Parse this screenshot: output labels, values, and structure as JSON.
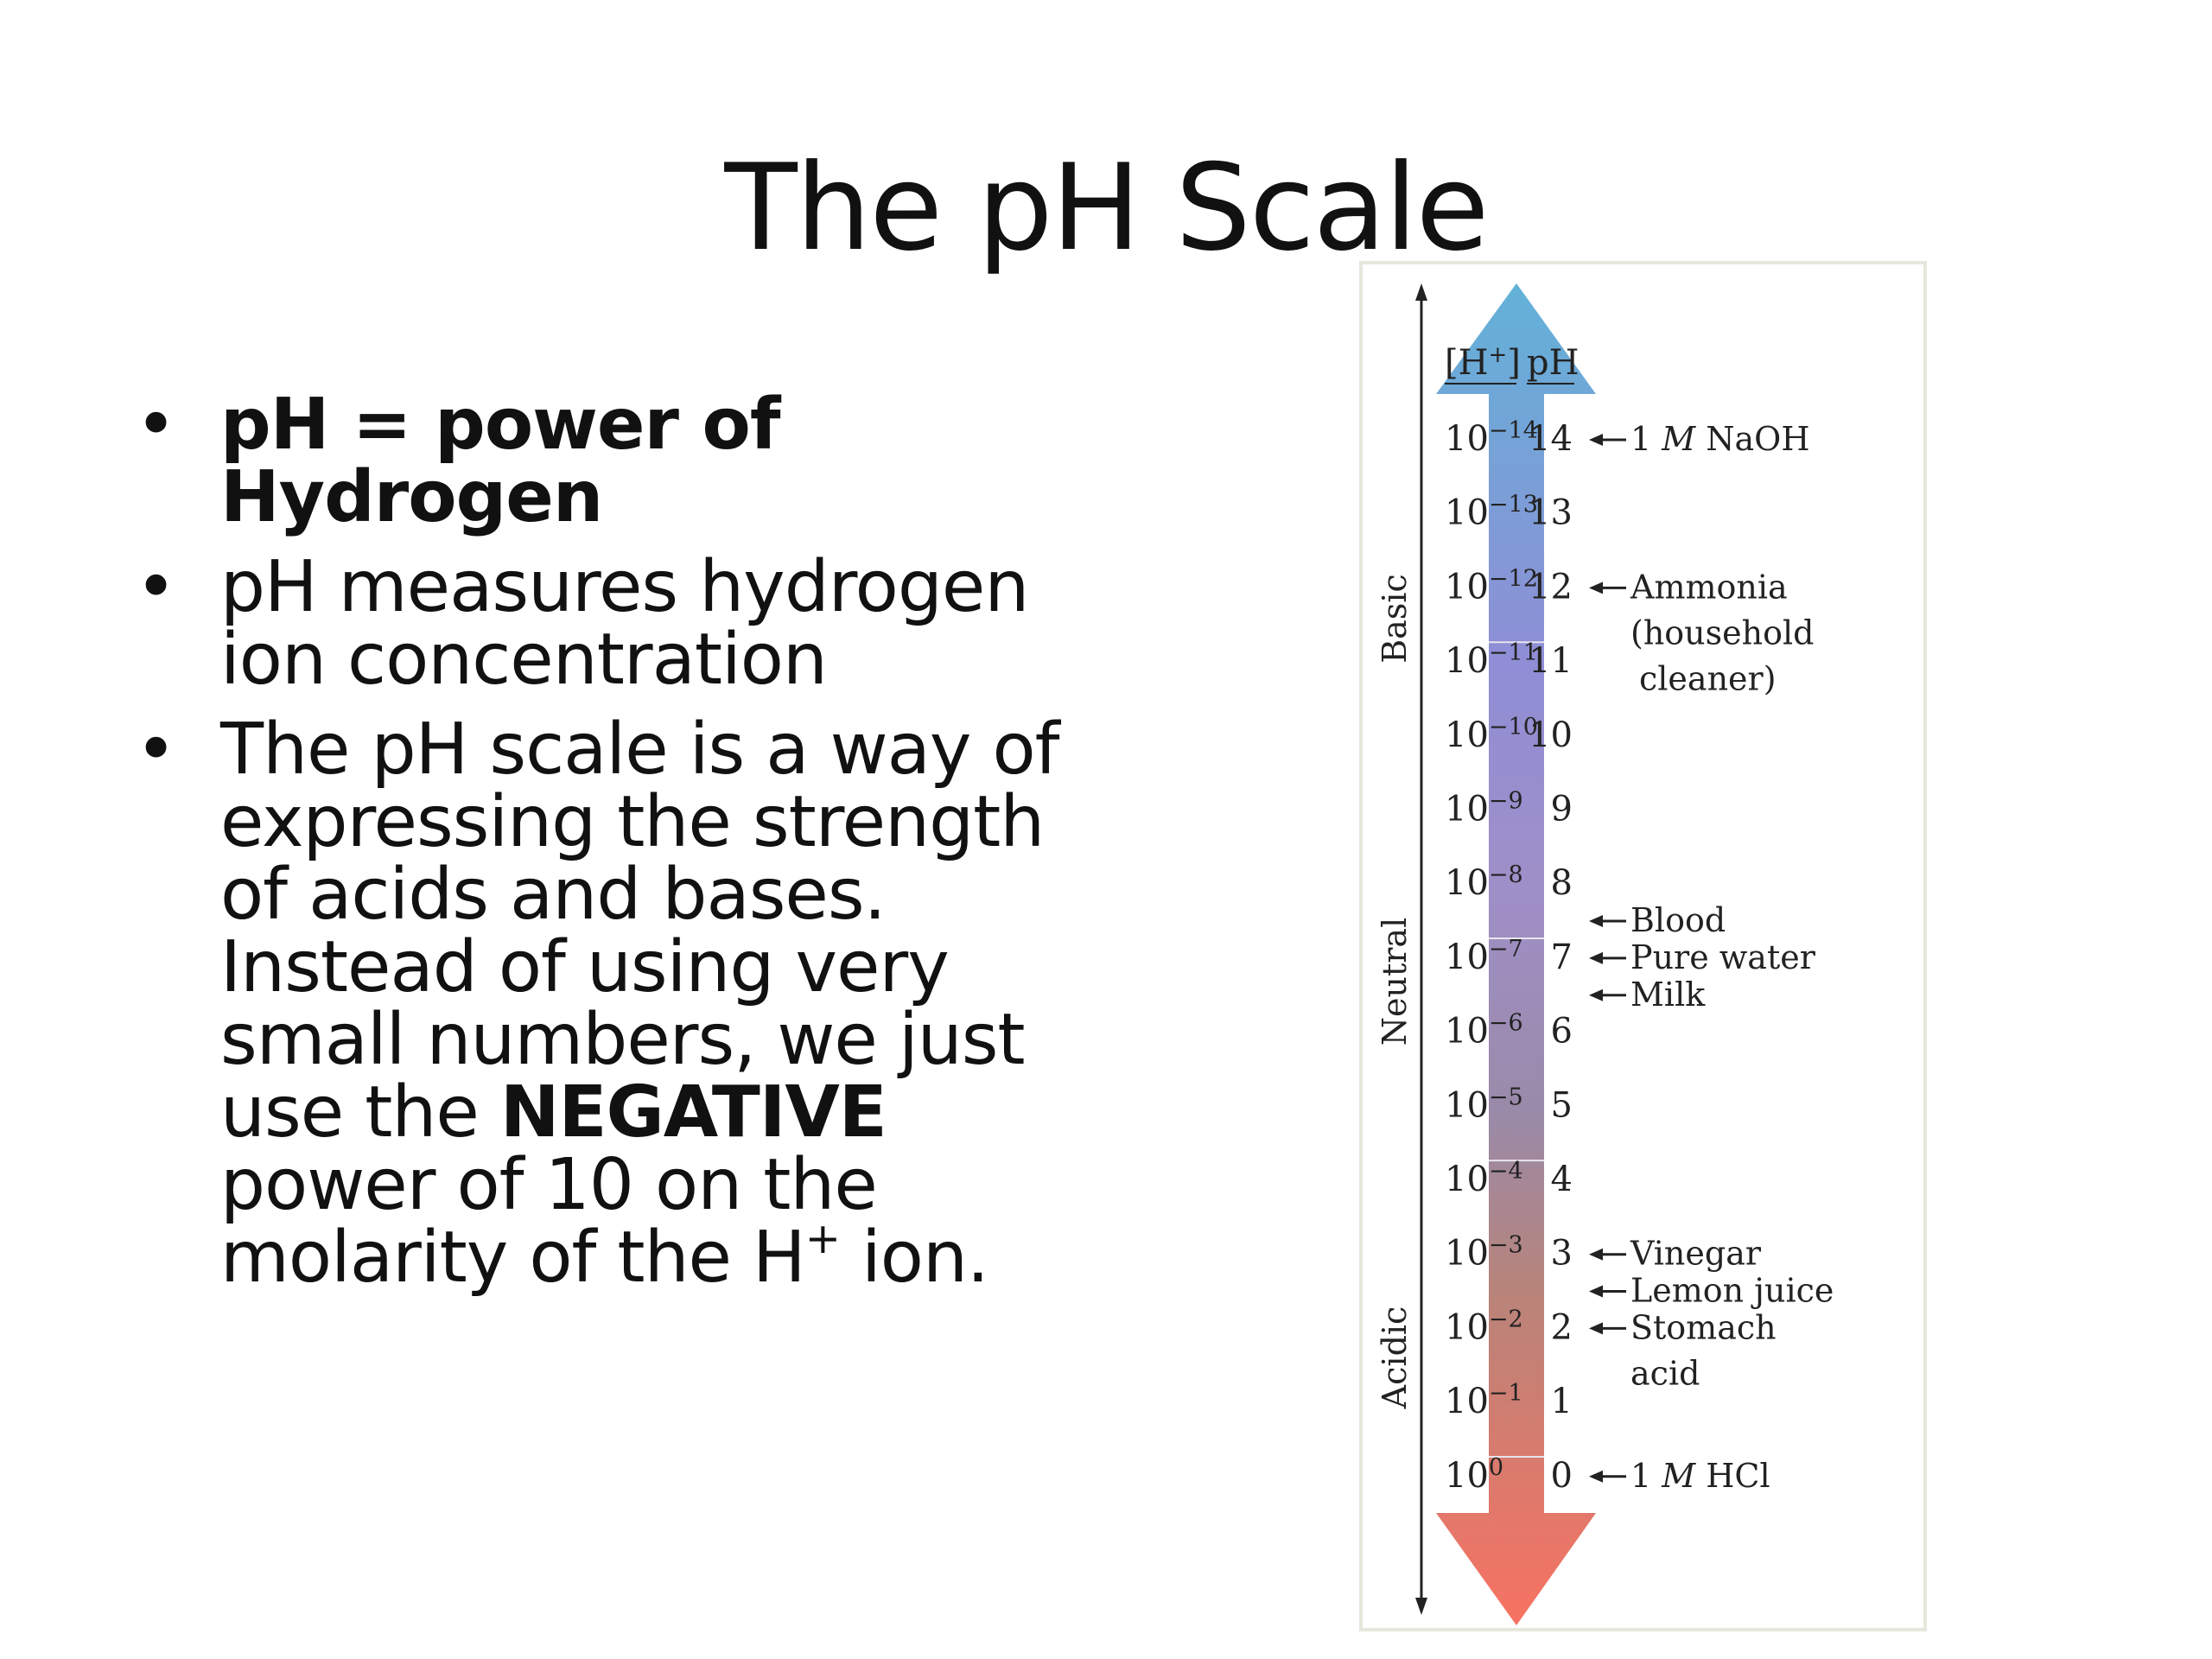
{
  "slide": {
    "title": "The pH Scale",
    "bullets": [
      {
        "bold_text": "pH = power of Hydrogen"
      },
      {
        "text": "pH measures hydrogen ion concentration"
      },
      {
        "text_before": "The pH scale is a way of expressing the strength of acids and bases. Instead of using very small numbers, we just use the ",
        "bold_text": "NEGATIVE",
        "text_after": " power of 10 on the molarity of the H",
        "superscript": "+",
        "text_end": " ion."
      }
    ],
    "bullet_glyph": "•"
  },
  "ph_figure": {
    "header_h": "[H",
    "header_h_sup": "+",
    "header_h_close": "]",
    "header_ph": "pH",
    "side_labels": {
      "basic": "Basic",
      "neutral": "Neutral",
      "acidic": "Acidic"
    },
    "rows": [
      {
        "h_base": "10",
        "h_exp": "−14",
        "ph": "14"
      },
      {
        "h_base": "10",
        "h_exp": "−13",
        "ph": "13"
      },
      {
        "h_base": "10",
        "h_exp": "−12",
        "ph": "12"
      },
      {
        "h_base": "10",
        "h_exp": "−11",
        "ph": "11"
      },
      {
        "h_base": "10",
        "h_exp": "−10",
        "ph": "10"
      },
      {
        "h_base": "10",
        "h_exp": "−9",
        "ph": "9"
      },
      {
        "h_base": "10",
        "h_exp": "−8",
        "ph": "8"
      },
      {
        "h_base": "10",
        "h_exp": "−7",
        "ph": "7"
      },
      {
        "h_base": "10",
        "h_exp": "−6",
        "ph": "6"
      },
      {
        "h_base": "10",
        "h_exp": "−5",
        "ph": "5"
      },
      {
        "h_base": "10",
        "h_exp": "−4",
        "ph": "4"
      },
      {
        "h_base": "10",
        "h_exp": "−3",
        "ph": "3"
      },
      {
        "h_base": "10",
        "h_exp": "−2",
        "ph": "2"
      },
      {
        "h_base": "10",
        "h_exp": "−1",
        "ph": "1"
      },
      {
        "h_base": "10",
        "h_exp": "0",
        "ph": "0"
      }
    ],
    "substances": [
      {
        "ph": 14,
        "lines": [
          "1 M NaOH"
        ],
        "italic_M": true
      },
      {
        "ph": 12,
        "lines": [
          "Ammonia",
          "(household",
          "cleaner)"
        ]
      },
      {
        "ph": 7.5,
        "lines": [
          "Blood"
        ]
      },
      {
        "ph": 7,
        "lines": [
          "Pure water"
        ]
      },
      {
        "ph": 6.5,
        "lines": [
          "Milk"
        ]
      },
      {
        "ph": 3,
        "lines": [
          "Vinegar"
        ]
      },
      {
        "ph": 2.5,
        "lines": [
          "Lemon juice"
        ]
      },
      {
        "ph": 2,
        "lines": [
          "Stomach",
          "acid"
        ]
      },
      {
        "ph": 0,
        "lines": [
          "1 M HCl"
        ],
        "italic_M": true
      }
    ],
    "colors": {
      "top": "#62b2d8",
      "upper_mid": "#8f8ed6",
      "mid": "#9f8fc8",
      "neutral": "#9a8aa8",
      "lower_mid": "#b8847a",
      "bottom": "#f87262"
    }
  }
}
